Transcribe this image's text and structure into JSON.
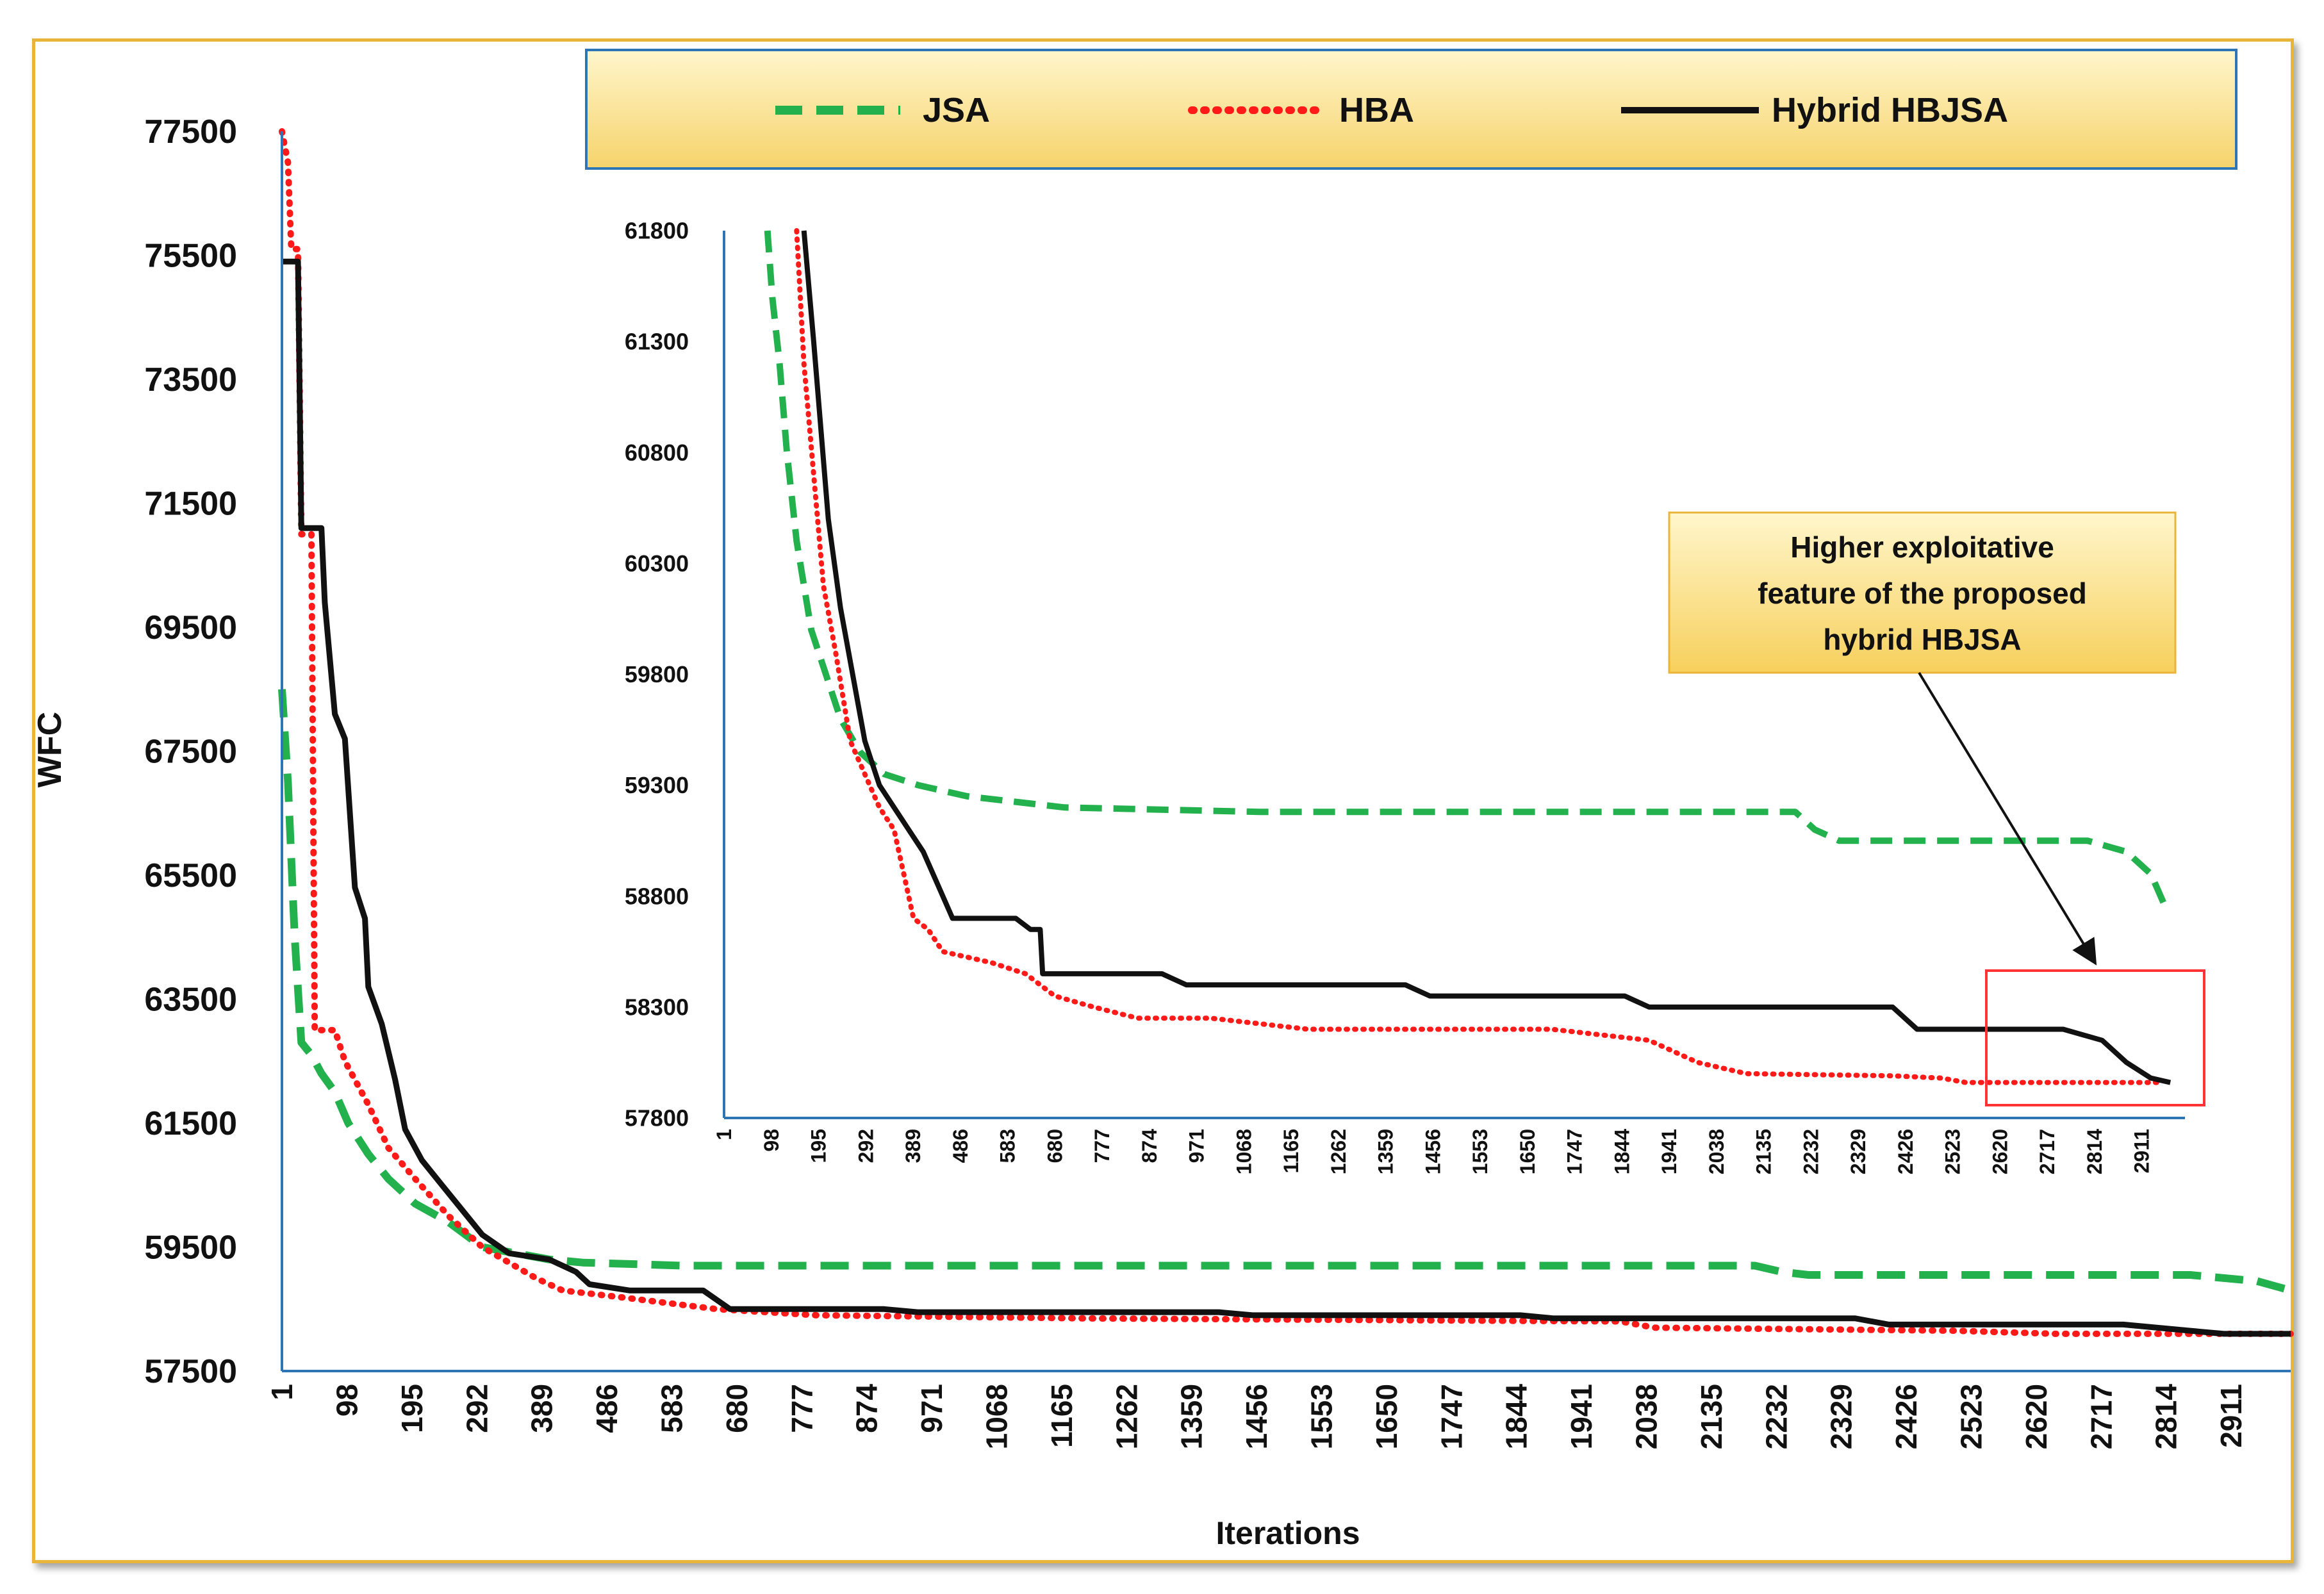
{
  "chart_data": [
    {
      "id": "main",
      "type": "line",
      "ylabel": "WFC",
      "xlabel": "Iterations",
      "ylim": [
        57500,
        77500
      ],
      "xlim": [
        1,
        3000
      ],
      "yticks": [
        "77500",
        "75500",
        "73500",
        "71500",
        "69500",
        "67500",
        "65500",
        "63500",
        "61500",
        "59500",
        "57500"
      ],
      "xticks": [
        "1",
        "98",
        "195",
        "292",
        "389",
        "486",
        "583",
        "680",
        "777",
        "874",
        "971",
        "1068",
        "1165",
        "1262",
        "1359",
        "1456",
        "1553",
        "1650",
        "1747",
        "1844",
        "1941",
        "2038",
        "2135",
        "2232",
        "2329",
        "2426",
        "2523",
        "2620",
        "2717",
        "2814",
        "2911"
      ],
      "series": [
        {
          "name": "JSA",
          "color": "#22b14c",
          "style": "dashed",
          "points": [
            [
              1,
              68500
            ],
            [
              10,
              67000
            ],
            [
              20,
              64500
            ],
            [
              30,
              62800
            ],
            [
              45,
              62600
            ],
            [
              60,
              62300
            ],
            [
              80,
              62000
            ],
            [
              100,
              61500
            ],
            [
              130,
              61000
            ],
            [
              160,
              60600
            ],
            [
              200,
              60200
            ],
            [
              250,
              59900
            ],
            [
              300,
              59500
            ],
            [
              400,
              59300
            ],
            [
              450,
              59250
            ],
            [
              600,
              59200
            ],
            [
              1000,
              59200
            ],
            [
              2200,
              59200
            ],
            [
              2240,
              59100
            ],
            [
              2280,
              59050
            ],
            [
              2700,
              59050
            ],
            [
              2850,
              59050
            ],
            [
              2950,
              58950
            ],
            [
              3000,
              58800
            ]
          ]
        },
        {
          "name": "HBA",
          "color": "#ff1a1a",
          "style": "dotted",
          "points": [
            [
              1,
              77500
            ],
            [
              10,
              77000
            ],
            [
              15,
              75600
            ],
            [
              25,
              75600
            ],
            [
              30,
              71000
            ],
            [
              45,
              71000
            ],
            [
              50,
              63000
            ],
            [
              80,
              63000
            ],
            [
              95,
              62500
            ],
            [
              130,
              61800
            ],
            [
              160,
              61100
            ],
            [
              200,
              60600
            ],
            [
              250,
              60000
            ],
            [
              300,
              59500
            ],
            [
              380,
              59000
            ],
            [
              420,
              58800
            ],
            [
              500,
              58700
            ],
            [
              650,
              58500
            ],
            [
              800,
              58400
            ],
            [
              1200,
              58350
            ],
            [
              2000,
              58300
            ],
            [
              2050,
              58200
            ],
            [
              2500,
              58150
            ],
            [
              2650,
              58100
            ],
            [
              2900,
              58100
            ],
            [
              3000,
              58100
            ]
          ]
        },
        {
          "name": "Hybrid HBJSA",
          "color": "#111111",
          "style": "solid",
          "points": [
            [
              1,
              75400
            ],
            [
              25,
              75400
            ],
            [
              30,
              71100
            ],
            [
              60,
              71100
            ],
            [
              65,
              69900
            ],
            [
              80,
              68100
            ],
            [
              95,
              67700
            ],
            [
              110,
              65300
            ],
            [
              125,
              64800
            ],
            [
              130,
              63700
            ],
            [
              150,
              63100
            ],
            [
              170,
              62200
            ],
            [
              185,
              61400
            ],
            [
              210,
              60900
            ],
            [
              240,
              60500
            ],
            [
              270,
              60100
            ],
            [
              300,
              59700
            ],
            [
              340,
              59400
            ],
            [
              400,
              59300
            ],
            [
              440,
              59100
            ],
            [
              460,
              58900
            ],
            [
              520,
              58800
            ],
            [
              630,
              58800
            ],
            [
              670,
              58500
            ],
            [
              900,
              58500
            ],
            [
              950,
              58450
            ],
            [
              1400,
              58450
            ],
            [
              1450,
              58400
            ],
            [
              1850,
              58400
            ],
            [
              1900,
              58350
            ],
            [
              2350,
              58350
            ],
            [
              2400,
              58250
            ],
            [
              2750,
              58250
            ],
            [
              2850,
              58150
            ],
            [
              2900,
              58100
            ],
            [
              3000,
              58100
            ]
          ]
        }
      ]
    },
    {
      "id": "inset",
      "type": "line",
      "ylim": [
        57800,
        61800
      ],
      "xlim": [
        1,
        3000
      ],
      "yticks": [
        "61800",
        "61300",
        "60800",
        "60300",
        "59800",
        "59300",
        "58800",
        "58300",
        "57800"
      ],
      "xticks": [
        "1",
        "98",
        "195",
        "292",
        "389",
        "486",
        "583",
        "680",
        "777",
        "874",
        "971",
        "1068",
        "1165",
        "1262",
        "1359",
        "1456",
        "1553",
        "1650",
        "1747",
        "1844",
        "1941",
        "2038",
        "2135",
        "2232",
        "2329",
        "2426",
        "2523",
        "2620",
        "2717",
        "2814",
        "2911"
      ],
      "series": [
        {
          "name": "JSA",
          "color": "#22b14c",
          "style": "dashed",
          "points": [
            [
              90,
              61800
            ],
            [
              100,
              61500
            ],
            [
              115,
              61200
            ],
            [
              130,
              60800
            ],
            [
              150,
              60400
            ],
            [
              180,
              60000
            ],
            [
              210,
              59800
            ],
            [
              240,
              59600
            ],
            [
              280,
              59450
            ],
            [
              330,
              59350
            ],
            [
              400,
              59300
            ],
            [
              500,
              59250
            ],
            [
              700,
              59200
            ],
            [
              1100,
              59180
            ],
            [
              2200,
              59180
            ],
            [
              2240,
              59100
            ],
            [
              2290,
              59050
            ],
            [
              2800,
              59050
            ],
            [
              2880,
              59000
            ],
            [
              2930,
              58900
            ],
            [
              2960,
              58750
            ]
          ]
        },
        {
          "name": "HBA",
          "color": "#ff1a1a",
          "style": "dotted",
          "points": [
            [
              150,
              61800
            ],
            [
              165,
              61200
            ],
            [
              185,
              60700
            ],
            [
              205,
              60200
            ],
            [
              230,
              59900
            ],
            [
              260,
              59500
            ],
            [
              290,
              59350
            ],
            [
              320,
              59200
            ],
            [
              350,
              59100
            ],
            [
              370,
              58900
            ],
            [
              390,
              58700
            ],
            [
              420,
              58650
            ],
            [
              450,
              58550
            ],
            [
              550,
              58500
            ],
            [
              620,
              58450
            ],
            [
              680,
              58350
            ],
            [
              760,
              58300
            ],
            [
              850,
              58250
            ],
            [
              1000,
              58250
            ],
            [
              1200,
              58200
            ],
            [
              1700,
              58200
            ],
            [
              1900,
              58150
            ],
            [
              1950,
              58100
            ],
            [
              2000,
              58050
            ],
            [
              2100,
              58000
            ],
            [
              2400,
              57990
            ],
            [
              2500,
              57980
            ],
            [
              2550,
              57960
            ],
            [
              2950,
              57960
            ]
          ]
        },
        {
          "name": "Hybrid HBJSA",
          "color": "#111111",
          "style": "solid",
          "points": [
            [
              165,
              61800
            ],
            [
              185,
              61300
            ],
            [
              200,
              60900
            ],
            [
              215,
              60500
            ],
            [
              240,
              60100
            ],
            [
              265,
              59800
            ],
            [
              290,
              59500
            ],
            [
              320,
              59300
            ],
            [
              350,
              59200
            ],
            [
              380,
              59100
            ],
            [
              410,
              59000
            ],
            [
              440,
              58850
            ],
            [
              470,
              58700
            ],
            [
              600,
              58700
            ],
            [
              630,
              58650
            ],
            [
              650,
              58650
            ],
            [
              655,
              58450
            ],
            [
              900,
              58450
            ],
            [
              950,
              58400
            ],
            [
              1400,
              58400
            ],
            [
              1450,
              58350
            ],
            [
              1850,
              58350
            ],
            [
              1900,
              58300
            ],
            [
              2400,
              58300
            ],
            [
              2450,
              58200
            ],
            [
              2750,
              58200
            ],
            [
              2830,
              58150
            ],
            [
              2880,
              58050
            ],
            [
              2930,
              57980
            ],
            [
              2970,
              57960
            ]
          ]
        }
      ]
    }
  ],
  "legend": {
    "items": [
      "JSA",
      "HBA",
      "Hybrid HBJSA"
    ]
  },
  "annotation": {
    "lines": [
      "Higher exploitative",
      "feature of the proposed",
      "hybrid HBJSA"
    ]
  },
  "colors": {
    "jsa": "#22b14c",
    "hba": "#ff1a1a",
    "hybrid": "#111111",
    "axis": "#2e75b6",
    "frame": "#e8b43a",
    "callout_fill": "#fde69a",
    "highlight_box": "#ff3333"
  }
}
